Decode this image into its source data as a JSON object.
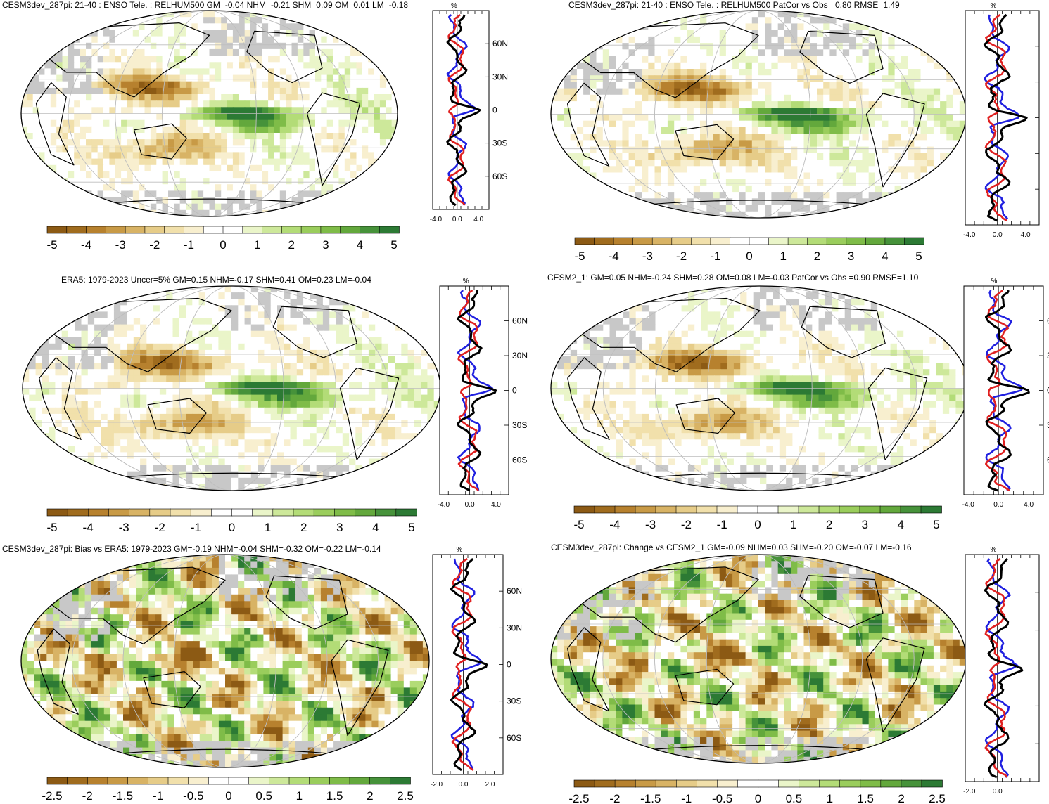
{
  "colors": {
    "negative_ramp": [
      "#8c5a14",
      "#a06c1e",
      "#b7812e",
      "#c89a46",
      "#d8b365",
      "#e6cc88",
      "#f1e0ab",
      "#f8efcf"
    ],
    "neutral": "#ffffff",
    "positive_ramp": [
      "#eaf5c9",
      "#cde89a",
      "#b3dc77",
      "#9acd5c",
      "#7fbc48",
      "#63a83c",
      "#46923a",
      "#2c7a34"
    ],
    "land_missing": "#c8c8c8",
    "obs_line": "#2020e0",
    "model_line": "#e02020",
    "diff_line": "#000000"
  },
  "chart_data": [
    {
      "type": "heatmap",
      "title": "CESM3dev_287pi: 21-40 : ENSO Tele. : RELHUM500 GM=-0.04 NHM=-0.21 SHM=0.09 OM=0.01 LM=-0.18",
      "colorbar_ticks": [
        "-5",
        "-4",
        "-3",
        "-2",
        "-1",
        "0",
        "1",
        "2",
        "3",
        "4",
        "5"
      ],
      "clim": [
        -5.5,
        5.5
      ],
      "profile": {
        "type": "line",
        "unit_label": "%",
        "x_ticks": [
          "-4.0",
          "0.0",
          "4.0"
        ],
        "y_ticks": [
          "60N",
          "30N",
          "0",
          "30S",
          "60S"
        ],
        "xlim": [
          -4,
          4
        ],
        "series_colors": [
          "#2020e0",
          "#e02020",
          "#000000"
        ]
      }
    },
    {
      "type": "heatmap",
      "title": "CESM3dev_287pi: 21-40 : ENSO Tele. : RELHUM500 PatCor vs Obs =0.80 RMSE=1.49",
      "colorbar_ticks": [
        "-5",
        "-4",
        "-3",
        "-2",
        "-1",
        "0",
        "1",
        "2",
        "3",
        "4",
        "5"
      ],
      "clim": [
        -5.5,
        5.5
      ],
      "profile": {
        "type": "line",
        "unit_label": "%",
        "x_ticks": [
          "-4.0",
          "0.0",
          "4.0"
        ],
        "y_ticks": [],
        "xlim": [
          -4,
          4
        ],
        "series_colors": [
          "#2020e0",
          "#e02020",
          "#000000"
        ]
      }
    },
    {
      "type": "heatmap",
      "title": "ERA5: 1979-2023 Uncer=5% GM=0.15 NHM=-0.17 SHM=0.41 OM=0.23 LM=-0.04",
      "colorbar_ticks": [
        "-5",
        "-4",
        "-3",
        "-2",
        "-1",
        "0",
        "1",
        "2",
        "3",
        "4",
        "5"
      ],
      "clim": [
        -5.5,
        5.5
      ],
      "profile": {
        "type": "line",
        "unit_label": "%",
        "x_ticks": [
          "-4.0",
          "0.0",
          "4.0"
        ],
        "y_ticks": [
          "60N",
          "30N",
          "0",
          "30S",
          "60S"
        ],
        "xlim": [
          -4,
          4
        ],
        "series_colors": [
          "#2020e0",
          "#e02020",
          "#000000"
        ]
      }
    },
    {
      "type": "heatmap",
      "title": "CESM2_1: GM=0.05 NHM=-0.24 SHM=0.28 OM=0.08 LM=-0.03 PatCor vs Obs =0.90 RMSE=1.10",
      "colorbar_ticks": [
        "-5",
        "-4",
        "-3",
        "-2",
        "-1",
        "0",
        "1",
        "2",
        "3",
        "4",
        "5"
      ],
      "clim": [
        -5.5,
        5.5
      ],
      "profile": {
        "type": "line",
        "unit_label": "%",
        "x_ticks": [
          "-4.0",
          "0.0",
          "4.0"
        ],
        "y_ticks": [
          "6",
          "3",
          "0",
          "3",
          "6"
        ],
        "xlim": [
          -4,
          4
        ],
        "series_colors": [
          "#2020e0",
          "#e02020",
          "#000000"
        ]
      }
    },
    {
      "type": "heatmap",
      "title": "CESM3dev_287pi: Bias vs ERA5: 1979-2023 GM=-0.19 NHM=-0.04 SHM=-0.32 OM=-0.22 LM=-0.14",
      "colorbar_ticks": [
        "-2.5",
        "-2",
        "-1.5",
        "-1",
        "-0.5",
        "0",
        "0.5",
        "1",
        "1.5",
        "2",
        "2.5"
      ],
      "clim": [
        -2.75,
        2.75
      ],
      "profile": {
        "type": "line",
        "unit_label": "%",
        "x_ticks": [
          "-2.0",
          "0.0",
          "2.0"
        ],
        "y_ticks": [
          "60N",
          "30N",
          "0",
          "30S",
          "60S"
        ],
        "xlim": [
          -2,
          2
        ],
        "series_colors": [
          "#2020e0",
          "#e02020",
          "#000000"
        ]
      }
    },
    {
      "type": "heatmap",
      "title": "CESM3dev_287pi: Change vs CESM2_1 GM=-0.09 NHM=0.03 SHM=-0.20 OM=-0.07 LM=-0.16",
      "colorbar_ticks": [
        "-2.5",
        "-2",
        "-1.5",
        "-1",
        "-0.5",
        "0",
        "0.5",
        "1",
        "1.5",
        "2",
        "2.5"
      ],
      "clim": [
        -2.75,
        2.75
      ],
      "profile": {
        "type": "line",
        "unit_label": "%",
        "x_ticks": [
          "-2.0",
          "0.0"
        ],
        "y_ticks": [],
        "xlim": [
          -2,
          2
        ],
        "series_colors": [
          "#2020e0",
          "#e02020",
          "#000000"
        ]
      }
    }
  ]
}
